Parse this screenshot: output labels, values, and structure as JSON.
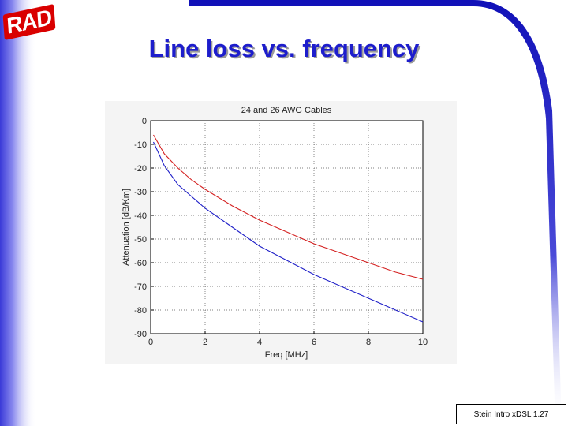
{
  "slide": {
    "logo_text": "RAD",
    "title": "Line loss vs. frequency",
    "footer": "Stein Intro xDSL 1.27",
    "colors": {
      "accent": "#1d1dcc",
      "logo_red": "#d90000",
      "border_blue": "#1818c8"
    }
  },
  "chart_data": {
    "type": "line",
    "title": "24 and 26 AWG Cables",
    "xlabel": "Freq [MHz]",
    "ylabel": "Attenuation [dB/Km]",
    "xlim": [
      0,
      10
    ],
    "ylim": [
      -90,
      0
    ],
    "xticks": [
      0,
      2,
      4,
      6,
      8,
      10
    ],
    "yticks": [
      0,
      -10,
      -20,
      -30,
      -40,
      -50,
      -60,
      -70,
      -80,
      -90
    ],
    "grid": true,
    "series": [
      {
        "color": "#d42020",
        "x": [
          0.1,
          0.5,
          1,
          1.5,
          2,
          3,
          4,
          5,
          6,
          7,
          8,
          9,
          10
        ],
        "y": [
          -6,
          -14,
          -20,
          -25,
          -29,
          -36,
          -42,
          -47,
          -52,
          -56,
          -60,
          -64,
          -67
        ]
      },
      {
        "color": "#2020c8",
        "x": [
          0.1,
          0.5,
          1,
          1.5,
          2,
          3,
          4,
          5,
          6,
          7,
          8,
          9,
          10
        ],
        "y": [
          -9,
          -19,
          -27,
          -32,
          -37,
          -45,
          -53,
          -59,
          -65,
          -70,
          -75,
          -80,
          -85
        ]
      }
    ]
  }
}
